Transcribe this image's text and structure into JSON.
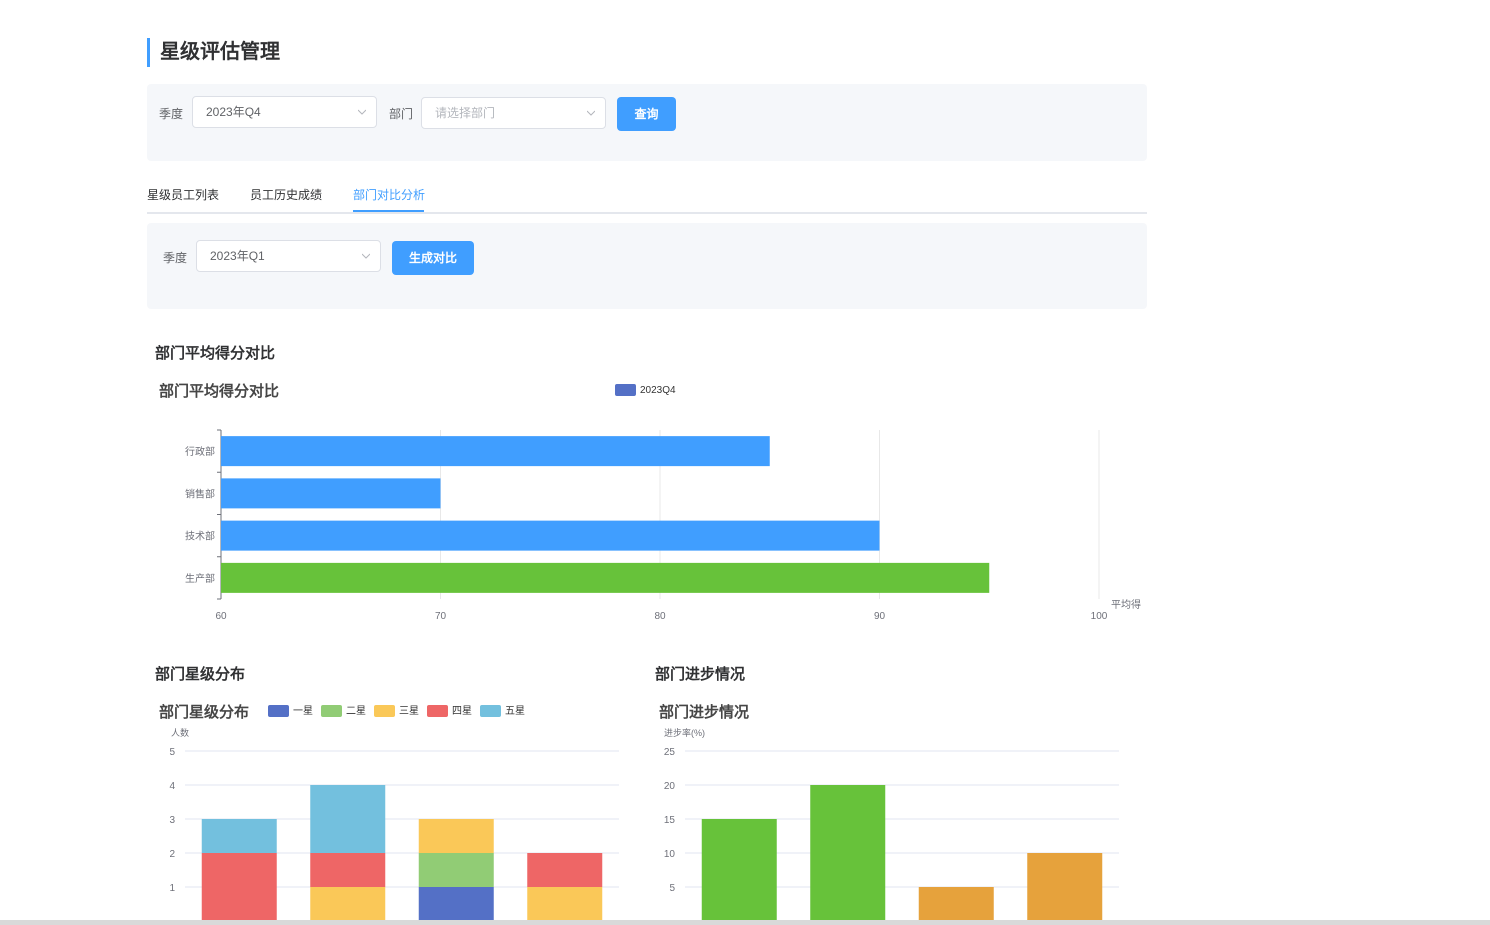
{
  "page": {
    "title": "星级评估管理"
  },
  "filters": {
    "season_label": "季度",
    "season_value": "2023年Q4",
    "dept_label": "部门",
    "dept_placeholder": "请选择部门",
    "query_button": "查询"
  },
  "tabs": [
    {
      "label": "星级员工列表",
      "active": false
    },
    {
      "label": "员工历史成绩",
      "active": false
    },
    {
      "label": "部门对比分析",
      "active": true
    }
  ],
  "compare_form": {
    "season_label": "季度",
    "season_value": "2023年Q1",
    "generate_button": "生成对比"
  },
  "sections": {
    "avg_score": "部门平均得分对比",
    "star_dist": "部门星级分布",
    "progress": "部门进步情况"
  },
  "colors": {
    "accent": "#409eff",
    "bar_blue": "#409eff",
    "bar_green": "#67c23a",
    "bar_orange": "#e6a23c",
    "legend_blue": "#5470c6",
    "star1": "#5470c6",
    "star2": "#91cc75",
    "star3": "#fac858",
    "star4": "#ee6666",
    "star5": "#73c0de"
  },
  "chart_data": [
    {
      "type": "bar",
      "orientation": "horizontal",
      "title": "部门平均得分对比",
      "legend": [
        "2023Q4"
      ],
      "categories": [
        "行政部",
        "销售部",
        "技术部",
        "生产部"
      ],
      "values": [
        85,
        70,
        90,
        95
      ],
      "xlabel": "平均得",
      "xlim": [
        60,
        100
      ],
      "xticks": [
        "60",
        "70",
        "80",
        "90",
        "100"
      ],
      "bar_colors": [
        "#409eff",
        "#409eff",
        "#409eff",
        "#67c23a"
      ]
    },
    {
      "type": "bar",
      "stacked": true,
      "title": "部门星级分布",
      "ylabel": "人数",
      "ylim": [
        0,
        5
      ],
      "yticks": [
        "1",
        "2",
        "3",
        "4",
        "5"
      ],
      "series": [
        {
          "name": "一星",
          "values": [
            0,
            0,
            1,
            0
          ]
        },
        {
          "name": "二星",
          "values": [
            0,
            0,
            1,
            0
          ]
        },
        {
          "name": "三星",
          "values": [
            0,
            1,
            1,
            1
          ]
        },
        {
          "name": "四星",
          "values": [
            2,
            1,
            0,
            1
          ]
        },
        {
          "name": "五星",
          "values": [
            1,
            2,
            0,
            0
          ]
        }
      ],
      "series_colors": [
        "#5470c6",
        "#91cc75",
        "#fac858",
        "#ee6666",
        "#73c0de"
      ]
    },
    {
      "type": "bar",
      "title": "部门进步情况",
      "ylabel": "进步率(%)",
      "ylim": [
        0,
        25
      ],
      "yticks": [
        "5",
        "10",
        "15",
        "20",
        "25"
      ],
      "values": [
        15,
        20,
        5,
        10
      ],
      "bar_colors": [
        "#67c23a",
        "#67c23a",
        "#e6a23c",
        "#e6a23c"
      ]
    }
  ]
}
